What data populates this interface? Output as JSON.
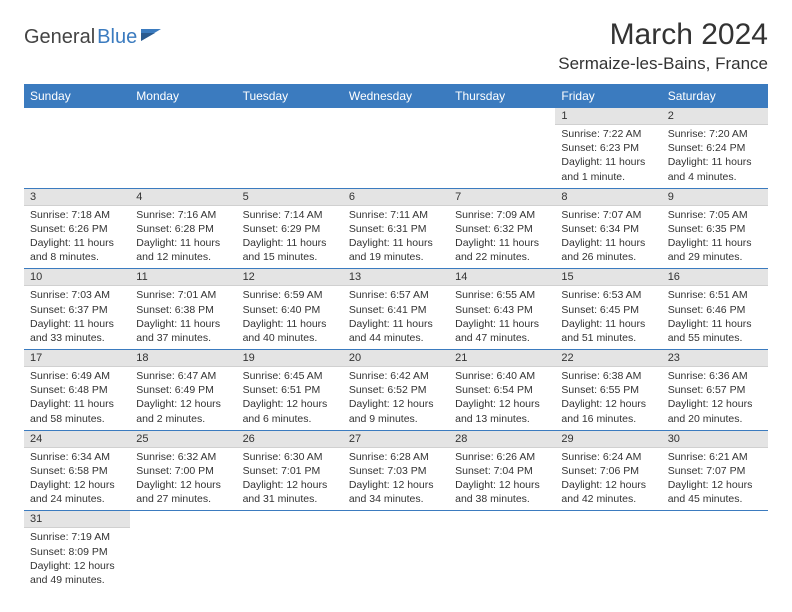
{
  "logo": {
    "text1": "General",
    "text2": "Blue"
  },
  "title": "March 2024",
  "location": "Sermaize-les-Bains, France",
  "day_headers": [
    "Sunday",
    "Monday",
    "Tuesday",
    "Wednesday",
    "Thursday",
    "Friday",
    "Saturday"
  ],
  "colors": {
    "header_bg": "#3b7bbf",
    "header_text": "#ffffff",
    "daynum_bg": "#e4e4e4",
    "row_border": "#3b7bbf",
    "logo_blue": "#3b7bbf"
  },
  "weeks": [
    [
      null,
      null,
      null,
      null,
      null,
      {
        "n": "1",
        "sunrise": "7:22 AM",
        "sunset": "6:23 PM",
        "daylight": "11 hours and 1 minute."
      },
      {
        "n": "2",
        "sunrise": "7:20 AM",
        "sunset": "6:24 PM",
        "daylight": "11 hours and 4 minutes."
      }
    ],
    [
      {
        "n": "3",
        "sunrise": "7:18 AM",
        "sunset": "6:26 PM",
        "daylight": "11 hours and 8 minutes."
      },
      {
        "n": "4",
        "sunrise": "7:16 AM",
        "sunset": "6:28 PM",
        "daylight": "11 hours and 12 minutes."
      },
      {
        "n": "5",
        "sunrise": "7:14 AM",
        "sunset": "6:29 PM",
        "daylight": "11 hours and 15 minutes."
      },
      {
        "n": "6",
        "sunrise": "7:11 AM",
        "sunset": "6:31 PM",
        "daylight": "11 hours and 19 minutes."
      },
      {
        "n": "7",
        "sunrise": "7:09 AM",
        "sunset": "6:32 PM",
        "daylight": "11 hours and 22 minutes."
      },
      {
        "n": "8",
        "sunrise": "7:07 AM",
        "sunset": "6:34 PM",
        "daylight": "11 hours and 26 minutes."
      },
      {
        "n": "9",
        "sunrise": "7:05 AM",
        "sunset": "6:35 PM",
        "daylight": "11 hours and 29 minutes."
      }
    ],
    [
      {
        "n": "10",
        "sunrise": "7:03 AM",
        "sunset": "6:37 PM",
        "daylight": "11 hours and 33 minutes."
      },
      {
        "n": "11",
        "sunrise": "7:01 AM",
        "sunset": "6:38 PM",
        "daylight": "11 hours and 37 minutes."
      },
      {
        "n": "12",
        "sunrise": "6:59 AM",
        "sunset": "6:40 PM",
        "daylight": "11 hours and 40 minutes."
      },
      {
        "n": "13",
        "sunrise": "6:57 AM",
        "sunset": "6:41 PM",
        "daylight": "11 hours and 44 minutes."
      },
      {
        "n": "14",
        "sunrise": "6:55 AM",
        "sunset": "6:43 PM",
        "daylight": "11 hours and 47 minutes."
      },
      {
        "n": "15",
        "sunrise": "6:53 AM",
        "sunset": "6:45 PM",
        "daylight": "11 hours and 51 minutes."
      },
      {
        "n": "16",
        "sunrise": "6:51 AM",
        "sunset": "6:46 PM",
        "daylight": "11 hours and 55 minutes."
      }
    ],
    [
      {
        "n": "17",
        "sunrise": "6:49 AM",
        "sunset": "6:48 PM",
        "daylight": "11 hours and 58 minutes."
      },
      {
        "n": "18",
        "sunrise": "6:47 AM",
        "sunset": "6:49 PM",
        "daylight": "12 hours and 2 minutes."
      },
      {
        "n": "19",
        "sunrise": "6:45 AM",
        "sunset": "6:51 PM",
        "daylight": "12 hours and 6 minutes."
      },
      {
        "n": "20",
        "sunrise": "6:42 AM",
        "sunset": "6:52 PM",
        "daylight": "12 hours and 9 minutes."
      },
      {
        "n": "21",
        "sunrise": "6:40 AM",
        "sunset": "6:54 PM",
        "daylight": "12 hours and 13 minutes."
      },
      {
        "n": "22",
        "sunrise": "6:38 AM",
        "sunset": "6:55 PM",
        "daylight": "12 hours and 16 minutes."
      },
      {
        "n": "23",
        "sunrise": "6:36 AM",
        "sunset": "6:57 PM",
        "daylight": "12 hours and 20 minutes."
      }
    ],
    [
      {
        "n": "24",
        "sunrise": "6:34 AM",
        "sunset": "6:58 PM",
        "daylight": "12 hours and 24 minutes."
      },
      {
        "n": "25",
        "sunrise": "6:32 AM",
        "sunset": "7:00 PM",
        "daylight": "12 hours and 27 minutes."
      },
      {
        "n": "26",
        "sunrise": "6:30 AM",
        "sunset": "7:01 PM",
        "daylight": "12 hours and 31 minutes."
      },
      {
        "n": "27",
        "sunrise": "6:28 AM",
        "sunset": "7:03 PM",
        "daylight": "12 hours and 34 minutes."
      },
      {
        "n": "28",
        "sunrise": "6:26 AM",
        "sunset": "7:04 PM",
        "daylight": "12 hours and 38 minutes."
      },
      {
        "n": "29",
        "sunrise": "6:24 AM",
        "sunset": "7:06 PM",
        "daylight": "12 hours and 42 minutes."
      },
      {
        "n": "30",
        "sunrise": "6:21 AM",
        "sunset": "7:07 PM",
        "daylight": "12 hours and 45 minutes."
      }
    ],
    [
      {
        "n": "31",
        "sunrise": "7:19 AM",
        "sunset": "8:09 PM",
        "daylight": "12 hours and 49 minutes."
      },
      null,
      null,
      null,
      null,
      null,
      null
    ]
  ],
  "labels": {
    "sunrise": "Sunrise: ",
    "sunset": "Sunset: ",
    "daylight": "Daylight: "
  }
}
